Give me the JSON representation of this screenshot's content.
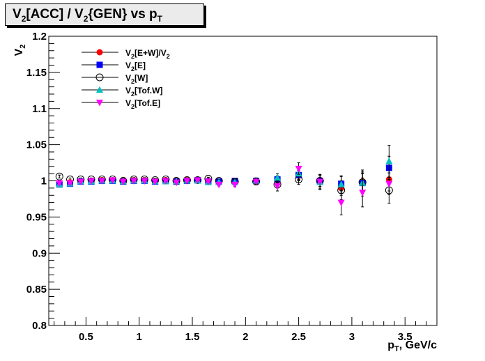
{
  "chart_data": {
    "type": "scatter",
    "title": "V2[ACC] / V2{GEN} vs pT",
    "title_parts": {
      "a": "V",
      "a_sub": "2",
      "b": "[ACC] / V",
      "b_sub": "2",
      "c": "{GEN} vs p",
      "c_sub": "T"
    },
    "xlabel": "pT, GeV/c",
    "xlabel_parts": {
      "a": "p",
      "a_sub": "T",
      "b": ", GeV/c"
    },
    "ylabel": "V2",
    "ylabel_parts": {
      "a": "V",
      "a_sub": "2"
    },
    "xlim": [
      0.15,
      3.8
    ],
    "ylim": [
      0.8,
      1.2
    ],
    "x_ticks": [
      0.5,
      1,
      1.5,
      2,
      2.5,
      3,
      3.5
    ],
    "x_tick_labels": [
      "0.5",
      "1",
      "1.5",
      "2",
      "2.5",
      "3",
      "3.5"
    ],
    "y_ticks": [
      0.8,
      0.85,
      0.9,
      0.95,
      1,
      1.05,
      1.1,
      1.15,
      1.2
    ],
    "y_tick_labels": [
      "0.8",
      "0.85",
      "0.9",
      "0.95",
      "1",
      "1.05",
      "1.1",
      "1.15",
      "1.2"
    ],
    "grid": false,
    "legend_position": "top-left",
    "series": [
      {
        "name": "V2[E+W]/V2",
        "legend_parts": {
          "a": "V",
          "a_sub": "2",
          "b": "[E+W]/V",
          "b_sub": "2"
        },
        "marker": "circle-filled",
        "color": "#ff0000",
        "x": [
          0.25,
          0.35,
          0.45,
          0.55,
          0.65,
          0.75,
          0.85,
          0.95,
          1.05,
          1.15,
          1.25,
          1.35,
          1.45,
          1.55,
          1.65,
          1.75,
          1.9,
          2.1,
          2.3,
          2.5,
          2.7,
          2.9,
          3.1,
          3.35
        ],
        "y": [
          0.997,
          0.998,
          1.0,
          1.0,
          1.001,
          1.001,
          1.0,
          1.001,
          1.001,
          1.0,
          1.001,
          1.0,
          1.001,
          1.001,
          1.0,
          0.999,
          1.0,
          1.0,
          1.001,
          1.007,
          1.0,
          0.99,
          0.998,
          1.002
        ],
        "yerr": [
          0.002,
          0.002,
          0.002,
          0.002,
          0.002,
          0.002,
          0.002,
          0.002,
          0.002,
          0.002,
          0.002,
          0.002,
          0.002,
          0.002,
          0.002,
          0.002,
          0.003,
          0.004,
          0.005,
          0.007,
          0.008,
          0.01,
          0.013,
          0.016
        ]
      },
      {
        "name": "V2[E]",
        "legend_parts": {
          "a": "V",
          "a_sub": "2",
          "b": "[E]",
          "b_sub": ""
        },
        "marker": "square-filled",
        "color": "#0000ff",
        "x": [
          0.25,
          0.35,
          0.45,
          0.55,
          0.65,
          0.75,
          0.85,
          0.95,
          1.05,
          1.15,
          1.25,
          1.35,
          1.45,
          1.55,
          1.65,
          1.75,
          1.9,
          2.1,
          2.3,
          2.5,
          2.7,
          2.9,
          3.1,
          3.35
        ],
        "y": [
          0.995,
          0.996,
          0.999,
          0.999,
          1.0,
          1.0,
          0.999,
          1.0,
          1.0,
          0.999,
          1.0,
          0.999,
          1.0,
          1.001,
          0.999,
          0.999,
          1.0,
          1.0,
          1.002,
          1.008,
          1.0,
          0.996,
          0.997,
          1.018
        ],
        "yerr": [
          0.002,
          0.002,
          0.002,
          0.002,
          0.002,
          0.002,
          0.002,
          0.002,
          0.002,
          0.002,
          0.002,
          0.002,
          0.002,
          0.002,
          0.002,
          0.002,
          0.003,
          0.004,
          0.005,
          0.007,
          0.008,
          0.01,
          0.013,
          0.016
        ]
      },
      {
        "name": "V2[W]",
        "legend_parts": {
          "a": "V",
          "a_sub": "2",
          "b": "[W]",
          "b_sub": ""
        },
        "marker": "circle-open",
        "color": "#000000",
        "x": [
          0.25,
          0.35,
          0.45,
          0.55,
          0.65,
          0.75,
          0.85,
          0.95,
          1.05,
          1.15,
          1.25,
          1.35,
          1.45,
          1.55,
          1.65,
          1.75,
          1.9,
          2.1,
          2.3,
          2.5,
          2.7,
          2.9,
          3.1,
          3.35
        ],
        "y": [
          1.006,
          1.002,
          1.002,
          1.002,
          1.002,
          1.002,
          1.0,
          1.002,
          1.002,
          1.001,
          1.002,
          1.0,
          1.001,
          1.001,
          1.003,
          1.0,
          0.999,
          0.999,
          0.995,
          1.002,
          1.0,
          0.987,
          0.998,
          0.987
        ],
        "yerr": [
          0.002,
          0.002,
          0.002,
          0.002,
          0.002,
          0.002,
          0.002,
          0.002,
          0.002,
          0.002,
          0.002,
          0.002,
          0.002,
          0.002,
          0.002,
          0.002,
          0.003,
          0.004,
          0.005,
          0.007,
          0.008,
          0.013,
          0.015,
          0.018
        ]
      },
      {
        "name": "V2[Tof.W]",
        "legend_parts": {
          "a": "V",
          "a_sub": "2",
          "b": "[Tof.W]",
          "b_sub": ""
        },
        "marker": "triangle-up",
        "color": "#00c0c0",
        "x": [
          0.25,
          0.35,
          0.45,
          0.55,
          0.65,
          0.75,
          0.85,
          0.95,
          1.05,
          1.15,
          1.25,
          1.35,
          1.45,
          1.55,
          1.65,
          1.75,
          1.9,
          2.1,
          2.3,
          2.5,
          2.7,
          2.9,
          3.1,
          3.35
        ],
        "y": [
          0.995,
          0.996,
          0.999,
          0.999,
          1.0,
          1.0,
          0.999,
          1.0,
          1.0,
          0.999,
          0.999,
          0.999,
          1.0,
          1.0,
          0.998,
          0.998,
          0.998,
          1.0,
          1.004,
          1.01,
          0.998,
          0.995,
          0.997,
          1.027
        ],
        "yerr": [
          0.002,
          0.002,
          0.002,
          0.002,
          0.002,
          0.002,
          0.002,
          0.002,
          0.002,
          0.002,
          0.002,
          0.002,
          0.002,
          0.002,
          0.002,
          0.002,
          0.003,
          0.004,
          0.006,
          0.008,
          0.01,
          0.012,
          0.018,
          0.022
        ]
      },
      {
        "name": "V2[Tof.E]",
        "legend_parts": {
          "a": "V",
          "a_sub": "2",
          "b": "[Tof.E]",
          "b_sub": ""
        },
        "marker": "triangle-down",
        "color": "#ff00ff",
        "x": [
          0.25,
          0.35,
          0.45,
          0.55,
          0.65,
          0.75,
          0.85,
          0.95,
          1.05,
          1.15,
          1.25,
          1.35,
          1.45,
          1.55,
          1.65,
          1.75,
          1.9,
          2.1,
          2.3,
          2.5,
          2.7,
          2.9,
          3.1,
          3.35
        ],
        "y": [
          0.997,
          0.997,
          0.999,
          1.0,
          1.0,
          1.001,
          0.999,
          1.0,
          1.0,
          0.999,
          1.0,
          0.998,
          1.0,
          1.001,
          0.999,
          0.995,
          0.995,
          0.999,
          0.993,
          1.017,
          0.999,
          0.97,
          0.984,
          0.996
        ],
        "yerr": [
          0.002,
          0.002,
          0.002,
          0.002,
          0.002,
          0.002,
          0.002,
          0.002,
          0.002,
          0.002,
          0.002,
          0.002,
          0.002,
          0.002,
          0.002,
          0.002,
          0.003,
          0.004,
          0.007,
          0.008,
          0.01,
          0.017,
          0.02,
          0.015
        ]
      }
    ]
  }
}
